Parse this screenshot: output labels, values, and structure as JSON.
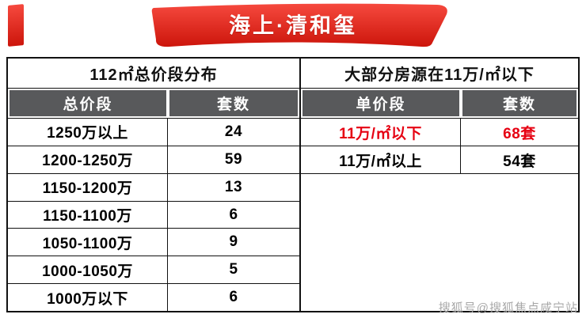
{
  "banner": {
    "title": "海上·清和玺"
  },
  "left_table": {
    "header": "112㎡总价段分布",
    "columns": {
      "col1": "总价段",
      "col2": "套数"
    },
    "rows": [
      {
        "range": "1250万以上",
        "count": "24"
      },
      {
        "range": "1200-1250万",
        "count": "59"
      },
      {
        "range": "1150-1200万",
        "count": "13"
      },
      {
        "range": "1150-1100万",
        "count": "6"
      },
      {
        "range": "1050-1100万",
        "count": "9"
      },
      {
        "range": "1000-1050万",
        "count": "5"
      },
      {
        "range": "1000万以下",
        "count": "6"
      }
    ]
  },
  "right_table": {
    "header": "大部分房源在11万/㎡以下",
    "columns": {
      "col1": "单价段",
      "col2": "套数"
    },
    "rows": [
      {
        "range": "11万/㎡以下",
        "count": "68套",
        "highlight": true
      },
      {
        "range": "11万/㎡以上",
        "count": "54套",
        "highlight": false
      }
    ]
  },
  "watermark": "搜狐号@搜狐焦点咸宁站",
  "colors": {
    "ribbon_red_top": "#f6493e",
    "ribbon_red_bottom": "#cc150b",
    "header_dark_gray": "#58595b",
    "highlight_red": "#e60012",
    "border_black": "#111111",
    "watermark_gray": "#a8a8a8"
  },
  "chart_data": [
    {
      "type": "table",
      "title": "112㎡总价段分布",
      "columns": [
        "总价段",
        "套数"
      ],
      "rows": [
        [
          "1250万以上",
          24
        ],
        [
          "1200-1250万",
          59
        ],
        [
          "1150-1200万",
          13
        ],
        [
          "1150-1100万",
          6
        ],
        [
          "1050-1100万",
          9
        ],
        [
          "1000-1050万",
          5
        ],
        [
          "1000万以下",
          6
        ]
      ]
    },
    {
      "type": "table",
      "title": "大部分房源在11万/㎡以下",
      "columns": [
        "单价段",
        "套数"
      ],
      "rows": [
        [
          "11万/㎡以下",
          "68套"
        ],
        [
          "11万/㎡以上",
          "54套"
        ]
      ],
      "highlighted_row": "11万/㎡以下"
    }
  ]
}
